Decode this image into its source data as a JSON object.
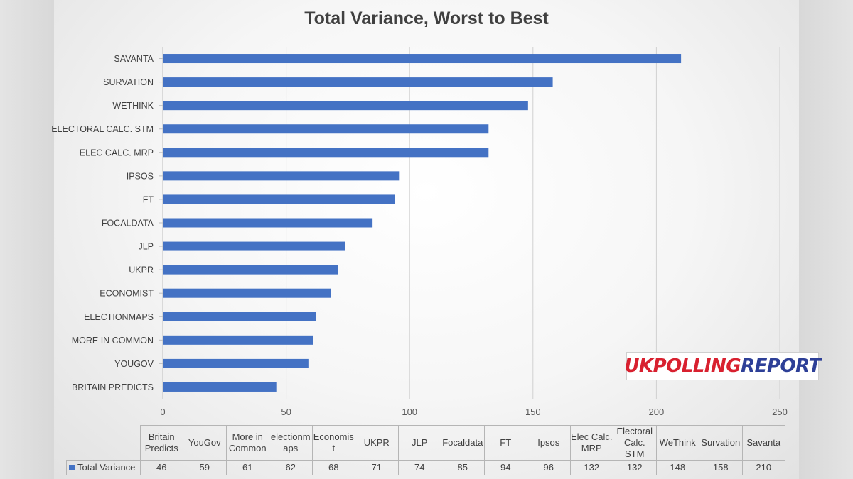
{
  "chart_data": {
    "type": "bar",
    "orientation": "horizontal",
    "title": "Total Variance, Worst to Best",
    "series": [
      {
        "name": "Total Variance",
        "color": "#4472c4",
        "values": [
          46,
          59,
          61,
          62,
          68,
          71,
          74,
          85,
          94,
          96,
          132,
          132,
          148,
          158,
          210
        ]
      }
    ],
    "categories": [
      "Britain Predicts",
      "YouGov",
      "More in Common",
      "electionmaps",
      "Economist",
      "UKPR",
      "JLP",
      "Focaldata",
      "FT",
      "Ipsos",
      "Elec Calc. MRP",
      "Electoral Calc. STM",
      "WeThink",
      "Survation",
      "Savanta"
    ],
    "axis_categories": [
      "BRITAIN PREDICTS",
      "YOUGOV",
      "MORE IN COMMON",
      "ELECTIONMAPS",
      "ECONOMIST",
      "UKPR",
      "JLP",
      "FOCALDATA",
      "FT",
      "IPSOS",
      "ELEC CALC. MRP",
      "ELECTORAL CALC. STM",
      "WETHINK",
      "SURVATION",
      "SAVANTA"
    ],
    "table_headers": [
      [
        "Britain",
        "Predicts"
      ],
      [
        "YouGov"
      ],
      [
        "More in",
        "Common"
      ],
      [
        "electionm",
        "aps"
      ],
      [
        "Economis",
        "t"
      ],
      [
        "UKPR"
      ],
      [
        "JLP"
      ],
      [
        "Focaldata"
      ],
      [
        "FT"
      ],
      [
        "Ipsos"
      ],
      [
        "Elec Calc.",
        "MRP"
      ],
      [
        "Electoral",
        "Calc. STM"
      ],
      [
        "WeThink"
      ],
      [
        "Survation"
      ],
      [
        "Savanta"
      ]
    ],
    "xlim": [
      0,
      250
    ],
    "xticks": [
      0,
      50,
      100,
      150,
      200,
      250
    ],
    "grid": "vertical",
    "data_table": true
  },
  "logo": {
    "part1": "UK",
    "part2": "POLLING",
    "part3": "REPORT"
  }
}
